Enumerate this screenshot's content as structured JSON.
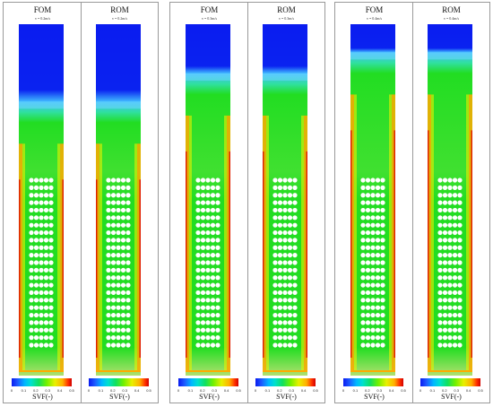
{
  "groups": [
    {
      "velocity": "v = 0.2m/s",
      "panels": [
        {
          "title": "FOM",
          "subtitle": "v = 0.2m/s",
          "empty_fraction": 0.22
        },
        {
          "title": "ROM",
          "subtitle": "v = 0.2m/s",
          "empty_fraction": 0.22
        }
      ]
    },
    {
      "velocity": "v = 0.3m/s",
      "panels": [
        {
          "title": "FOM",
          "subtitle": "v = 0.3m/s",
          "empty_fraction": 0.14
        },
        {
          "title": "ROM",
          "subtitle": "v = 0.3m/s",
          "empty_fraction": 0.14
        }
      ]
    },
    {
      "velocity": "v = 0.4m/s",
      "panels": [
        {
          "title": "FOM",
          "subtitle": "v = 0.4m/s",
          "empty_fraction": 0.08
        },
        {
          "title": "ROM",
          "subtitle": "v = 0.4m/s",
          "empty_fraction": 0.08
        }
      ]
    }
  ],
  "colorbar": {
    "label": "SVF(-)",
    "ticks": [
      "0",
      "0.1",
      "0.2",
      "0.3",
      "0.4",
      "0.5"
    ],
    "colors": {
      "empty": "#0a1cf0",
      "bed": "#22dd22",
      "wall": "#ff9900",
      "interface": "#60d8ff"
    }
  },
  "tube_grid": {
    "columns": 5,
    "rows": 23
  }
}
